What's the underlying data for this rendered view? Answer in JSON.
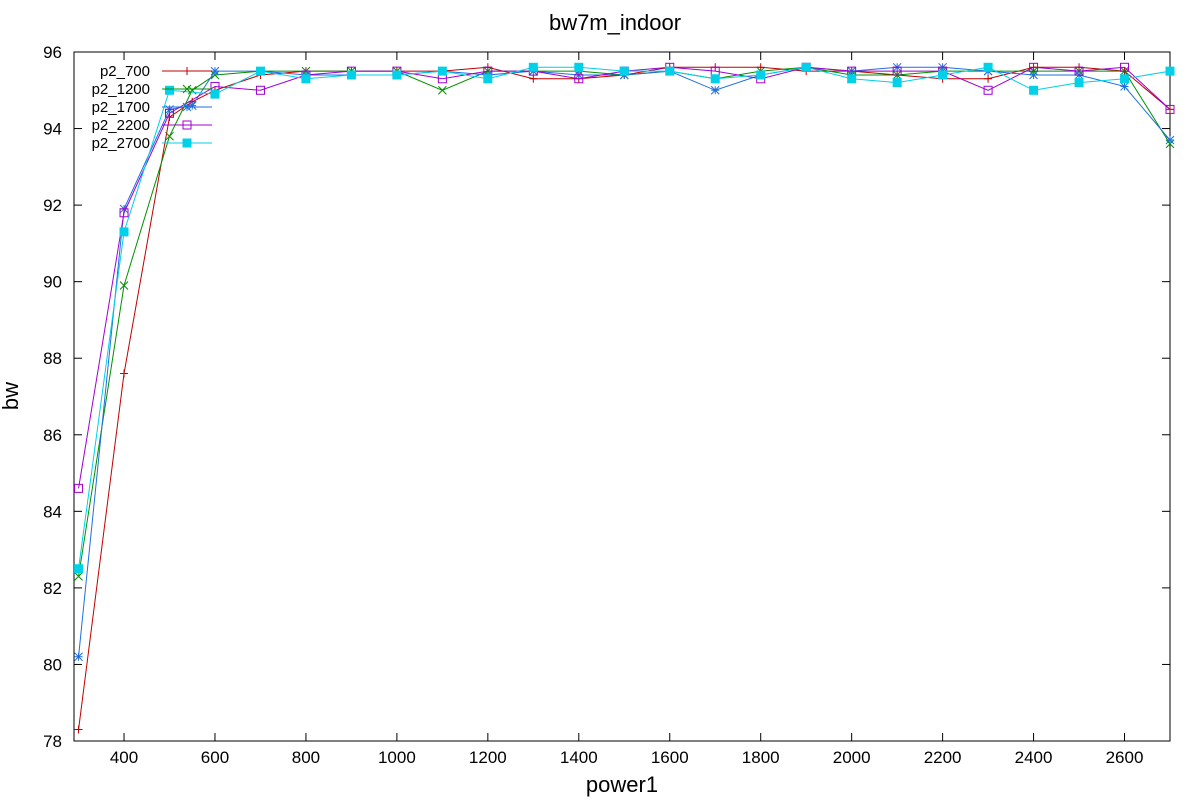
{
  "chart_data": {
    "type": "line",
    "title": "bw7m_indoor",
    "xlabel": "power1",
    "ylabel": "bw",
    "xlim": [
      290,
      2700
    ],
    "ylim": [
      78,
      96
    ],
    "x_ticks": [
      400,
      600,
      800,
      1000,
      1200,
      1400,
      1600,
      1800,
      2000,
      2200,
      2400,
      2600
    ],
    "y_ticks": [
      78,
      80,
      82,
      84,
      86,
      88,
      90,
      92,
      94,
      96
    ],
    "grid": false,
    "legend_position": "top-left",
    "series": [
      {
        "name": "p2_700",
        "color": "#c00000",
        "marker": "plus",
        "points": [
          [
            300,
            78.3
          ],
          [
            400,
            87.6
          ],
          [
            500,
            94.3
          ],
          [
            550,
            94.7
          ],
          [
            600,
            95.0
          ],
          [
            700,
            95.4
          ],
          [
            800,
            95.5
          ],
          [
            900,
            95.5
          ],
          [
            1000,
            95.5
          ],
          [
            1100,
            95.5
          ],
          [
            1200,
            95.6
          ],
          [
            1300,
            95.3
          ],
          [
            1400,
            95.3
          ],
          [
            1500,
            95.4
          ],
          [
            1600,
            95.6
          ],
          [
            1700,
            95.6
          ],
          [
            1800,
            95.6
          ],
          [
            1900,
            95.5
          ],
          [
            2000,
            95.5
          ],
          [
            2100,
            95.4
          ],
          [
            2200,
            95.3
          ],
          [
            2300,
            95.3
          ],
          [
            2400,
            95.6
          ],
          [
            2500,
            95.6
          ],
          [
            2600,
            95.5
          ],
          [
            2700,
            94.5
          ]
        ]
      },
      {
        "name": "p2_1200",
        "color": "#009000",
        "marker": "cross",
        "points": [
          [
            300,
            82.3
          ],
          [
            400,
            89.9
          ],
          [
            500,
            93.8
          ],
          [
            550,
            95.0
          ],
          [
            600,
            95.4
          ],
          [
            700,
            95.5
          ],
          [
            800,
            95.5
          ],
          [
            900,
            95.5
          ],
          [
            1000,
            95.5
          ],
          [
            1100,
            95.0
          ],
          [
            1200,
            95.5
          ],
          [
            1300,
            95.5
          ],
          [
            1400,
            95.5
          ],
          [
            1500,
            95.4
          ],
          [
            1600,
            95.5
          ],
          [
            1700,
            95.3
          ],
          [
            1800,
            95.5
          ],
          [
            1900,
            95.6
          ],
          [
            2000,
            95.4
          ],
          [
            2100,
            95.4
          ],
          [
            2200,
            95.5
          ],
          [
            2300,
            95.5
          ],
          [
            2400,
            95.5
          ],
          [
            2500,
            95.5
          ],
          [
            2600,
            95.5
          ],
          [
            2700,
            93.6
          ]
        ]
      },
      {
        "name": "p2_1700",
        "color": "#1e6fe0",
        "marker": "star",
        "points": [
          [
            300,
            80.2
          ],
          [
            400,
            91.9
          ],
          [
            500,
            94.5
          ],
          [
            550,
            94.6
          ],
          [
            600,
            95.5
          ],
          [
            700,
            95.5
          ],
          [
            800,
            95.4
          ],
          [
            900,
            95.4
          ],
          [
            1000,
            95.4
          ],
          [
            1100,
            95.5
          ],
          [
            1200,
            95.4
          ],
          [
            1300,
            95.5
          ],
          [
            1400,
            95.4
          ],
          [
            1500,
            95.4
          ],
          [
            1600,
            95.5
          ],
          [
            1700,
            95.0
          ],
          [
            1800,
            95.4
          ],
          [
            1900,
            95.6
          ],
          [
            2000,
            95.5
          ],
          [
            2100,
            95.6
          ],
          [
            2200,
            95.6
          ],
          [
            2300,
            95.5
          ],
          [
            2400,
            95.4
          ],
          [
            2500,
            95.4
          ],
          [
            2600,
            95.1
          ],
          [
            2700,
            93.7
          ]
        ]
      },
      {
        "name": "p2_2200",
        "color": "#a000d0",
        "marker": "square",
        "points": [
          [
            300,
            84.6
          ],
          [
            400,
            91.8
          ],
          [
            500,
            94.4
          ],
          [
            600,
            95.1
          ],
          [
            700,
            95.0
          ],
          [
            800,
            95.4
          ],
          [
            900,
            95.5
          ],
          [
            1000,
            95.5
          ],
          [
            1100,
            95.3
          ],
          [
            1200,
            95.5
          ],
          [
            1300,
            95.5
          ],
          [
            1400,
            95.3
          ],
          [
            1500,
            95.5
          ],
          [
            1600,
            95.6
          ],
          [
            1700,
            95.5
          ],
          [
            1800,
            95.3
          ],
          [
            1900,
            95.6
          ],
          [
            2000,
            95.5
          ],
          [
            2100,
            95.5
          ],
          [
            2200,
            95.5
          ],
          [
            2300,
            95.0
          ],
          [
            2400,
            95.6
          ],
          [
            2500,
            95.5
          ],
          [
            2600,
            95.6
          ],
          [
            2700,
            94.5
          ]
        ]
      },
      {
        "name": "p2_2700",
        "color": "#00d0e8",
        "marker": "filled-square",
        "points": [
          [
            300,
            82.5
          ],
          [
            400,
            91.3
          ],
          [
            500,
            95.0
          ],
          [
            600,
            94.9
          ],
          [
            700,
            95.5
          ],
          [
            800,
            95.3
          ],
          [
            900,
            95.4
          ],
          [
            1000,
            95.4
          ],
          [
            1100,
            95.5
          ],
          [
            1200,
            95.3
          ],
          [
            1300,
            95.6
          ],
          [
            1400,
            95.6
          ],
          [
            1500,
            95.5
          ],
          [
            1600,
            95.5
          ],
          [
            1700,
            95.3
          ],
          [
            1800,
            95.4
          ],
          [
            1900,
            95.6
          ],
          [
            2000,
            95.3
          ],
          [
            2100,
            95.2
          ],
          [
            2200,
            95.4
          ],
          [
            2300,
            95.6
          ],
          [
            2400,
            95.0
          ],
          [
            2500,
            95.2
          ],
          [
            2600,
            95.3
          ],
          [
            2700,
            95.5
          ]
        ]
      }
    ]
  }
}
